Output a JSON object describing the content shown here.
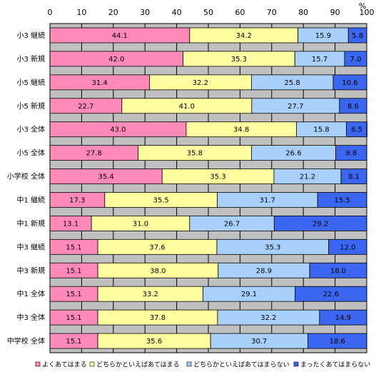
{
  "chart_data": {
    "type": "bar",
    "orientation": "horizontal",
    "stacked": true,
    "unit": "%",
    "xlim": [
      0,
      100
    ],
    "xticks": [
      "0",
      "10",
      "20",
      "30",
      "40",
      "50",
      "60",
      "70",
      "80",
      "90",
      "100"
    ],
    "grid": true,
    "legend_position": "bottom",
    "categories": [
      "小3 継続",
      "小3 新規",
      "小5 継続",
      "小5 新規",
      "小3 全体",
      "小5 全体",
      "小学校 全体",
      "中1 継続",
      "中1 新規",
      "中3 継続",
      "中3 新規",
      "中1 全体",
      "中3 全体",
      "中学校 全体"
    ],
    "series": [
      {
        "name": "よくあてはまる",
        "color": "#ff8ab8",
        "values": [
          44.1,
          42.0,
          31.4,
          22.7,
          43.0,
          27.8,
          35.4,
          17.3,
          13.1,
          15.1,
          15.1,
          15.1,
          15.1,
          15.1
        ]
      },
      {
        "name": "どちらかといえばあてはまる",
        "color": "#ffffa0",
        "values": [
          34.2,
          35.3,
          32.2,
          41.0,
          34.8,
          35.8,
          35.3,
          35.5,
          31.0,
          37.6,
          38.0,
          33.2,
          37.8,
          35.6
        ]
      },
      {
        "name": "どちらかといえばあてはまらない",
        "color": "#a8d0fa",
        "values": [
          15.9,
          15.7,
          25.8,
          27.7,
          15.8,
          26.6,
          21.2,
          31.7,
          26.7,
          35.3,
          28.9,
          29.1,
          32.2,
          30.7
        ]
      },
      {
        "name": "まったくあてはまらない",
        "color": "#3a66f2",
        "values": [
          5.8,
          7.0,
          10.6,
          8.6,
          6.5,
          9.8,
          8.1,
          15.5,
          29.2,
          12.0,
          18.0,
          22.6,
          14.9,
          18.6
        ]
      }
    ]
  }
}
